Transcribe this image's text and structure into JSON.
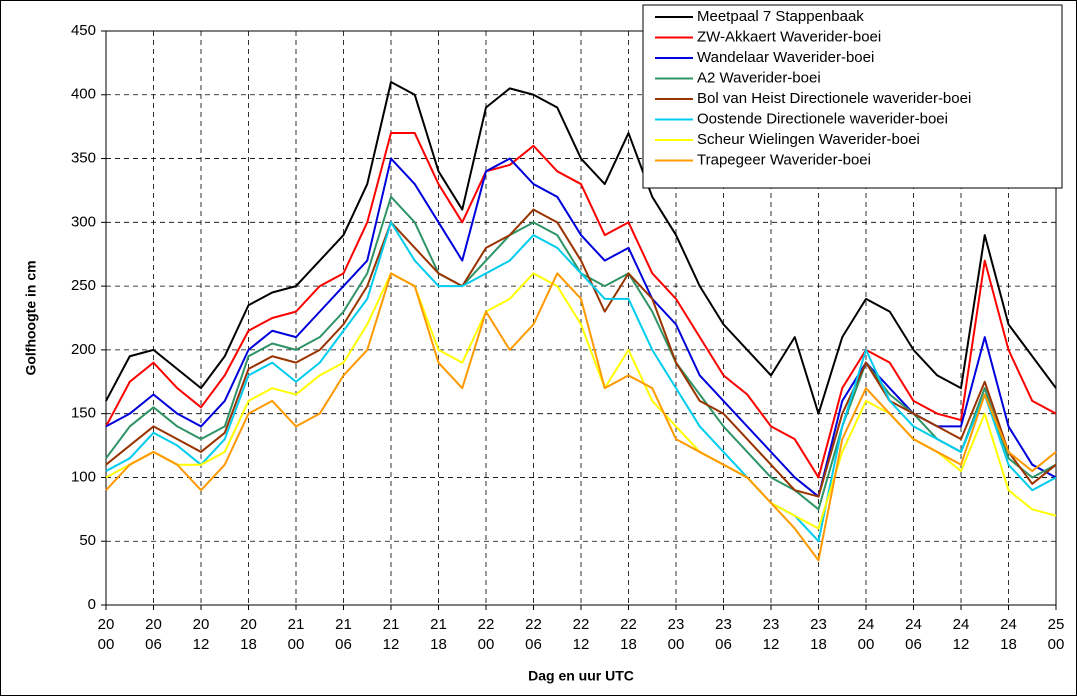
{
  "chart_data": {
    "type": "line",
    "ylabel": "Golfhoogte in cm",
    "xlabel": "Dag en uur UTC",
    "x": [
      0,
      3,
      6,
      9,
      12,
      15,
      18,
      21,
      24,
      27,
      30,
      33,
      36,
      39,
      42,
      45,
      48,
      51,
      54,
      57,
      60,
      63,
      66,
      69,
      72,
      75,
      78,
      81,
      84,
      87,
      90,
      93,
      96,
      99,
      102,
      105,
      108,
      111,
      114,
      117,
      120
    ],
    "xlim": [
      0,
      120
    ],
    "xticks": [
      {
        "value": 0,
        "label": [
          "20",
          "00"
        ]
      },
      {
        "value": 6,
        "label": [
          "20",
          "06"
        ]
      },
      {
        "value": 12,
        "label": [
          "20",
          "12"
        ]
      },
      {
        "value": 18,
        "label": [
          "20",
          "18"
        ]
      },
      {
        "value": 24,
        "label": [
          "21",
          "00"
        ]
      },
      {
        "value": 30,
        "label": [
          "21",
          "06"
        ]
      },
      {
        "value": 36,
        "label": [
          "21",
          "12"
        ]
      },
      {
        "value": 42,
        "label": [
          "21",
          "18"
        ]
      },
      {
        "value": 48,
        "label": [
          "22",
          "00"
        ]
      },
      {
        "value": 54,
        "label": [
          "22",
          "06"
        ]
      },
      {
        "value": 60,
        "label": [
          "22",
          "12"
        ]
      },
      {
        "value": 66,
        "label": [
          "22",
          "18"
        ]
      },
      {
        "value": 72,
        "label": [
          "23",
          "00"
        ]
      },
      {
        "value": 78,
        "label": [
          "23",
          "06"
        ]
      },
      {
        "value": 84,
        "label": [
          "23",
          "12"
        ]
      },
      {
        "value": 90,
        "label": [
          "23",
          "18"
        ]
      },
      {
        "value": 96,
        "label": [
          "24",
          "00"
        ]
      },
      {
        "value": 102,
        "label": [
          "24",
          "06"
        ]
      },
      {
        "value": 108,
        "label": [
          "24",
          "12"
        ]
      },
      {
        "value": 114,
        "label": [
          "24",
          "18"
        ]
      },
      {
        "value": 120,
        "label": [
          "25",
          "00"
        ]
      }
    ],
    "ylim": [
      0,
      450
    ],
    "yticks": [
      0,
      50,
      100,
      150,
      200,
      250,
      300,
      350,
      400,
      450
    ],
    "grid": true,
    "legend": "top-right",
    "series": [
      {
        "name": "Meetpaal 7 Stappenbaak",
        "color": "#000000",
        "values": [
          160,
          195,
          200,
          185,
          170,
          195,
          235,
          245,
          250,
          270,
          290,
          330,
          410,
          400,
          340,
          310,
          390,
          405,
          400,
          390,
          350,
          330,
          370,
          320,
          290,
          250,
          220,
          200,
          180,
          210,
          150,
          210,
          240,
          230,
          200,
          180,
          170,
          290,
          220,
          195,
          170
        ]
      },
      {
        "name": "ZW-Akkaert Waverider-boei",
        "color": "#ff0000",
        "values": [
          140,
          175,
          190,
          170,
          155,
          180,
          215,
          225,
          230,
          250,
          260,
          300,
          370,
          370,
          330,
          300,
          340,
          345,
          360,
          340,
          330,
          290,
          300,
          260,
          240,
          210,
          180,
          165,
          140,
          130,
          100,
          170,
          200,
          190,
          160,
          150,
          145,
          270,
          200,
          160,
          150
        ]
      },
      {
        "name": "Wandelaar Waverider-boei",
        "color": "#0000dd",
        "values": [
          140,
          150,
          165,
          150,
          140,
          160,
          200,
          215,
          210,
          230,
          250,
          270,
          350,
          330,
          300,
          270,
          340,
          350,
          330,
          320,
          290,
          270,
          280,
          240,
          220,
          180,
          160,
          140,
          120,
          100,
          85,
          160,
          190,
          170,
          150,
          140,
          140,
          210,
          140,
          110,
          100
        ]
      },
      {
        "name": "A2 Waverider-boei",
        "color": "#2e9466",
        "values": [
          115,
          140,
          155,
          140,
          130,
          140,
          195,
          205,
          200,
          210,
          230,
          260,
          320,
          300,
          260,
          250,
          270,
          290,
          300,
          290,
          260,
          250,
          260,
          230,
          190,
          165,
          140,
          120,
          100,
          90,
          75,
          140,
          190,
          165,
          150,
          130,
          120,
          170,
          115,
          100,
          110
        ]
      },
      {
        "name": "Bol van Heist Directionele waverider-boei",
        "color": "#993300",
        "values": [
          110,
          125,
          140,
          130,
          120,
          135,
          185,
          195,
          190,
          200,
          220,
          250,
          300,
          280,
          260,
          250,
          280,
          290,
          310,
          300,
          270,
          230,
          260,
          240,
          190,
          160,
          150,
          130,
          110,
          90,
          85,
          150,
          190,
          160,
          150,
          140,
          130,
          175,
          120,
          95,
          110
        ]
      },
      {
        "name": "Oostende Directionele waverider-boei",
        "color": "#00ccee",
        "values": [
          105,
          115,
          135,
          125,
          110,
          130,
          180,
          190,
          175,
          190,
          215,
          240,
          300,
          270,
          250,
          250,
          260,
          270,
          290,
          280,
          260,
          240,
          240,
          200,
          170,
          140,
          120,
          100,
          80,
          70,
          50,
          140,
          200,
          160,
          140,
          130,
          120,
          165,
          110,
          90,
          100
        ]
      },
      {
        "name": "Scheur Wielingen Waverider-boei",
        "color": "#ffff00",
        "values": [
          100,
          110,
          120,
          110,
          110,
          120,
          160,
          170,
          165,
          180,
          190,
          220,
          260,
          250,
          200,
          190,
          230,
          240,
          260,
          250,
          220,
          170,
          200,
          160,
          140,
          120,
          110,
          100,
          80,
          70,
          60,
          120,
          160,
          150,
          130,
          120,
          105,
          150,
          90,
          75,
          70
        ]
      },
      {
        "name": "Trapegeer Waverider-boei",
        "color": "#ff9900",
        "values": [
          90,
          110,
          120,
          110,
          90,
          110,
          150,
          160,
          140,
          150,
          180,
          200,
          260,
          250,
          190,
          170,
          230,
          200,
          220,
          260,
          240,
          170,
          180,
          170,
          130,
          120,
          110,
          100,
          80,
          60,
          35,
          130,
          170,
          150,
          130,
          120,
          110,
          165,
          120,
          105,
          120
        ]
      }
    ]
  }
}
